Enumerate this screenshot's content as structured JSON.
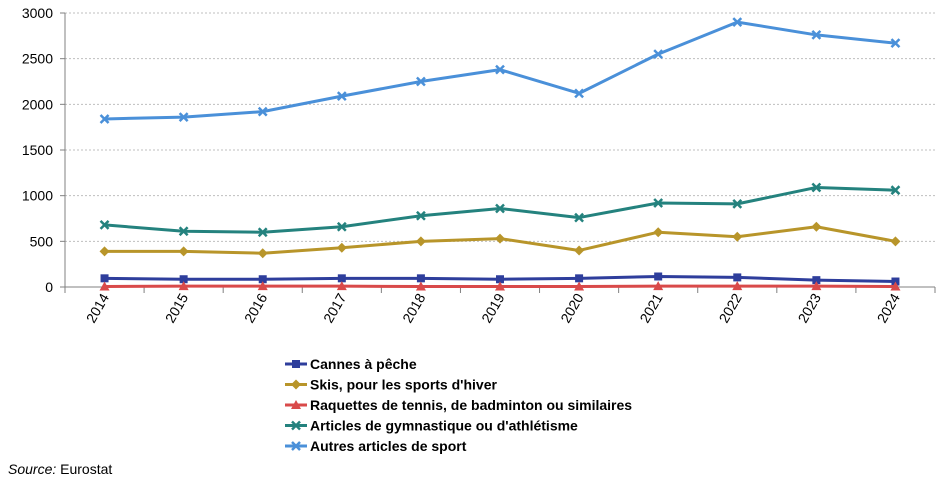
{
  "chart_data": {
    "type": "line",
    "title": "",
    "xlabel": "",
    "ylabel": "",
    "ylim": [
      0,
      3000
    ],
    "yticks": [
      0,
      500,
      1000,
      1500,
      2000,
      2500,
      3000
    ],
    "x": [
      "2014",
      "2015",
      "2016",
      "2017",
      "2018",
      "2019",
      "2020",
      "2021",
      "2022",
      "2023",
      "2024"
    ],
    "grid": "horizontal",
    "legend_position": "bottom",
    "series": [
      {
        "name": "Cannes à pêche",
        "color": "#2E3E9C",
        "marker": "square",
        "values": [
          95,
          85,
          85,
          95,
          95,
          85,
          95,
          115,
          105,
          75,
          60
        ]
      },
      {
        "name": "Skis, pour les sports d'hiver",
        "color": "#B8952A",
        "marker": "diamond",
        "values": [
          390,
          390,
          370,
          430,
          500,
          530,
          400,
          600,
          550,
          660,
          500
        ]
      },
      {
        "name": "Raquettes de tennis, de badminton ou similaires",
        "color": "#D94A4A",
        "marker": "triangle",
        "values": [
          5,
          10,
          10,
          10,
          5,
          5,
          5,
          10,
          10,
          10,
          5
        ]
      },
      {
        "name": "Articles de gymnastique ou d'athlétisme",
        "color": "#24827E",
        "marker": "x",
        "values": [
          680,
          610,
          600,
          660,
          780,
          860,
          760,
          920,
          910,
          1090,
          1060
        ]
      },
      {
        "name": "Autres articles de sport",
        "color": "#4A90D9",
        "marker": "x",
        "values": [
          1840,
          1860,
          1920,
          2090,
          2250,
          2380,
          2120,
          2550,
          2900,
          2760,
          2670
        ]
      }
    ]
  },
  "source": {
    "label": "Source:",
    "value": "Eurostat"
  }
}
